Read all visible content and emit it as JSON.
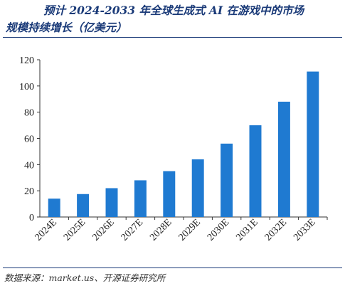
{
  "title_line1": "预计 2024-2033 年全球生成式 AI 在游戏中的市场",
  "title_line2": "规模持续增长（亿美元）",
  "source": "数据来源：market.us、开源证券研究所",
  "colors": {
    "bar": "#1f7ad1",
    "axis": "#333333",
    "title": "#1a3a78"
  },
  "chart_data": {
    "type": "bar",
    "categories": [
      "2024E",
      "2025E",
      "2026E",
      "2027E",
      "2028E",
      "2029E",
      "2030E",
      "2031E",
      "2032E",
      "2033E"
    ],
    "values": [
      14,
      17.5,
      22,
      28,
      35,
      44,
      56,
      70,
      88,
      111
    ],
    "yticks": [
      0,
      20,
      40,
      60,
      80,
      100,
      120
    ],
    "ylim": [
      0,
      120
    ],
    "title": "",
    "xlabel": "",
    "ylabel": "",
    "grid": false
  }
}
